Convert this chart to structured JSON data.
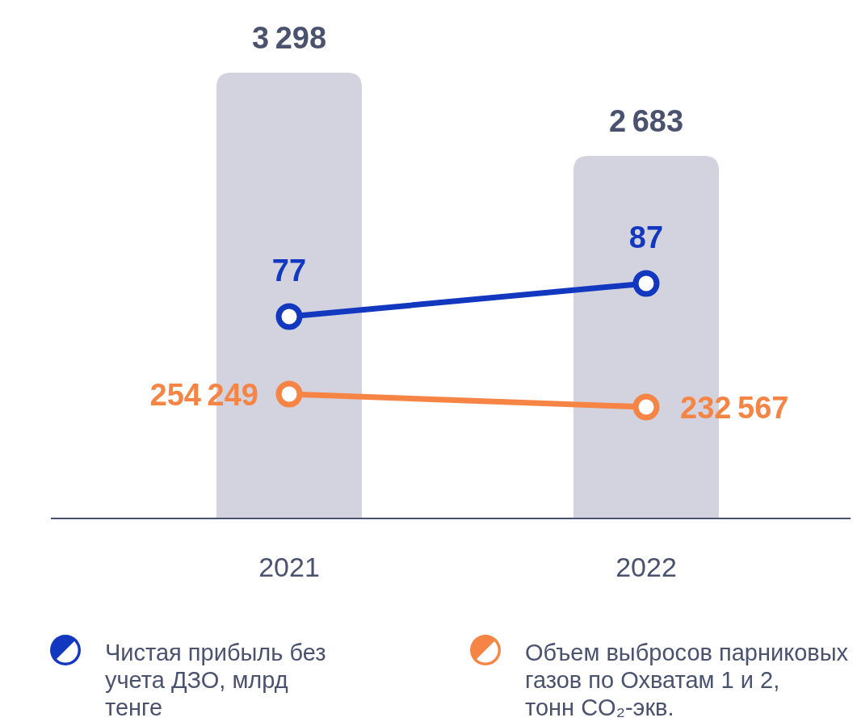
{
  "chart_data": [
    {
      "type": "bar",
      "categories": [
        "2021",
        "2022"
      ],
      "series": [
        {
          "color": "#d3d3e0",
          "values": [
            3298,
            2683
          ]
        }
      ],
      "data_labels": true,
      "grid": false
    },
    {
      "type": "line",
      "categories": [
        "2021",
        "2022"
      ],
      "series": [
        {
          "name": "Чистая прибыль без учета ДЗО, млрд тенге",
          "color": "#1238c0",
          "values": [
            77,
            87
          ]
        }
      ],
      "tick_labels": false,
      "data_labels": true,
      "legend": "bottom",
      "marker": "circle",
      "line_style": "solid",
      "grid": false
    },
    {
      "type": "line",
      "categories": [
        "2021",
        "2022"
      ],
      "series": [
        {
          "name": "Объем выбросов парниковых газов по Охватам 1 и 2, тонн CO₂-экв.",
          "color": "#f58445",
          "values": [
            254249,
            232567
          ]
        }
      ],
      "tick_labels": false,
      "data_labels": true,
      "legend": "bottom",
      "marker": "circle",
      "line_style": "solid",
      "grid": false
    }
  ]
}
